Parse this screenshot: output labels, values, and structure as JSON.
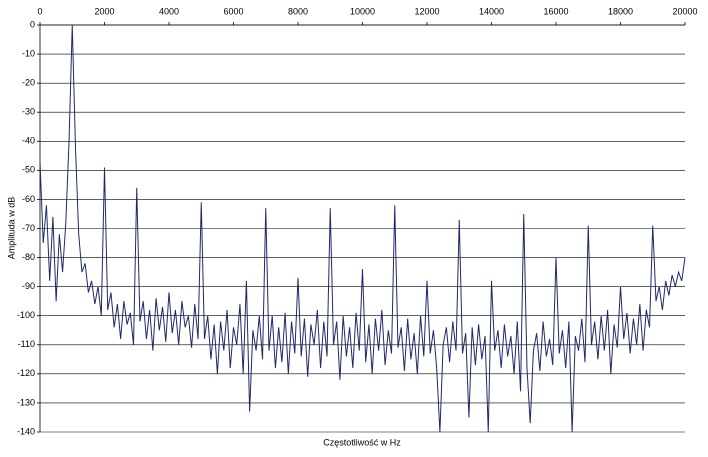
{
  "chart_data": {
    "type": "line",
    "x_label": "Częstotliwość w Hz",
    "y_label": "Amplituda w dB",
    "color": "#1f2a6b",
    "grid": true,
    "xlim": [
      0,
      20000
    ],
    "xticks": [
      0,
      2000,
      4000,
      6000,
      8000,
      10000,
      12000,
      14000,
      16000,
      18000,
      20000
    ],
    "ylim": [
      -140,
      0
    ],
    "yticks": [
      0,
      -10,
      -20,
      -30,
      -40,
      -50,
      -60,
      -70,
      -80,
      -90,
      -100,
      -110,
      -120,
      -130,
      -140
    ],
    "x": [
      0,
      100,
      200,
      300,
      400,
      500,
      600,
      700,
      800,
      900,
      1000,
      1100,
      1200,
      1300,
      1400,
      1500,
      1600,
      1700,
      1800,
      1900,
      2000,
      2100,
      2200,
      2300,
      2400,
      2500,
      2600,
      2700,
      2800,
      2900,
      3000,
      3100,
      3200,
      3300,
      3400,
      3500,
      3600,
      3700,
      3800,
      3900,
      4000,
      4100,
      4200,
      4300,
      4400,
      4500,
      4600,
      4700,
      4800,
      4900,
      5000,
      5100,
      5200,
      5300,
      5400,
      5500,
      5600,
      5700,
      5800,
      5900,
      6000,
      6100,
      6200,
      6300,
      6400,
      6500,
      6600,
      6700,
      6800,
      6900,
      7000,
      7100,
      7200,
      7300,
      7400,
      7500,
      7600,
      7700,
      7800,
      7900,
      8000,
      8100,
      8200,
      8300,
      8400,
      8500,
      8600,
      8700,
      8800,
      8900,
      9000,
      9100,
      9200,
      9300,
      9400,
      9500,
      9600,
      9700,
      9800,
      9900,
      10000,
      10100,
      10200,
      10300,
      10400,
      10500,
      10600,
      10700,
      10800,
      10900,
      11000,
      11100,
      11200,
      11300,
      11400,
      11500,
      11600,
      11700,
      11800,
      11900,
      12000,
      12100,
      12200,
      12300,
      12400,
      12500,
      12600,
      12700,
      12800,
      12900,
      13000,
      13100,
      13200,
      13300,
      13400,
      13500,
      13600,
      13700,
      13800,
      13900,
      14000,
      14100,
      14200,
      14300,
      14400,
      14500,
      14600,
      14700,
      14800,
      14900,
      15000,
      15100,
      15200,
      15300,
      15400,
      15500,
      15600,
      15700,
      15800,
      15900,
      16000,
      16100,
      16200,
      16300,
      16400,
      16500,
      16600,
      16700,
      16800,
      16900,
      17000,
      17100,
      17200,
      17300,
      17400,
      17500,
      17600,
      17700,
      17800,
      17900,
      18000,
      18100,
      18200,
      18300,
      18400,
      18500,
      18600,
      18700,
      18800,
      18900,
      19000,
      19100,
      19200,
      19300,
      19400,
      19500,
      19600,
      19700,
      19800,
      19900,
      20000
    ],
    "values": [
      -47,
      -75,
      -62,
      -88,
      -66,
      -95,
      -72,
      -85,
      -68,
      -40,
      0,
      -42,
      -72,
      -85,
      -82,
      -92,
      -88,
      -96,
      -90,
      -100,
      -49,
      -98,
      -92,
      -104,
      -96,
      -108,
      -95,
      -103,
      -99,
      -110,
      -56,
      -102,
      -95,
      -108,
      -98,
      -112,
      -94,
      -105,
      -97,
      -109,
      -92,
      -106,
      -98,
      -110,
      -95,
      -104,
      -100,
      -111,
      -96,
      -108,
      -61,
      -108,
      -100,
      -115,
      -103,
      -120,
      -102,
      -112,
      -98,
      -118,
      -104,
      -110,
      -96,
      -120,
      -88,
      -133,
      -105,
      -112,
      -100,
      -115,
      -63,
      -112,
      -100,
      -118,
      -104,
      -116,
      -99,
      -120,
      -102,
      -113,
      -87,
      -114,
      -101,
      -121,
      -103,
      -110,
      -98,
      -118,
      -102,
      -114,
      -63,
      -110,
      -102,
      -122,
      -100,
      -114,
      -104,
      -118,
      -99,
      -112,
      -84,
      -116,
      -103,
      -120,
      -101,
      -112,
      -98,
      -117,
      -105,
      -113,
      -62,
      -111,
      -104,
      -119,
      -101,
      -115,
      -106,
      -120,
      -100,
      -114,
      -88,
      -113,
      -105,
      -118,
      -140,
      -110,
      -104,
      -116,
      -102,
      -112,
      -67,
      -113,
      -106,
      -135,
      -104,
      -117,
      -103,
      -115,
      -107,
      -140,
      -88,
      -112,
      -105,
      -118,
      -103,
      -114,
      -107,
      -120,
      -102,
      -126,
      -65,
      -118,
      -137,
      -112,
      -106,
      -119,
      -102,
      -114,
      -108,
      -117,
      -80,
      -113,
      -105,
      -118,
      -102,
      -140,
      -107,
      -112,
      -101,
      -116,
      -69,
      -110,
      -102,
      -115,
      -100,
      -112,
      -98,
      -120,
      -103,
      -111,
      -90,
      -108,
      -99,
      -113,
      -101,
      -110,
      -96,
      -112,
      -98,
      -104,
      -69,
      -95,
      -90,
      -98,
      -88,
      -93,
      -86,
      -90,
      -85,
      -88,
      -80
    ]
  }
}
